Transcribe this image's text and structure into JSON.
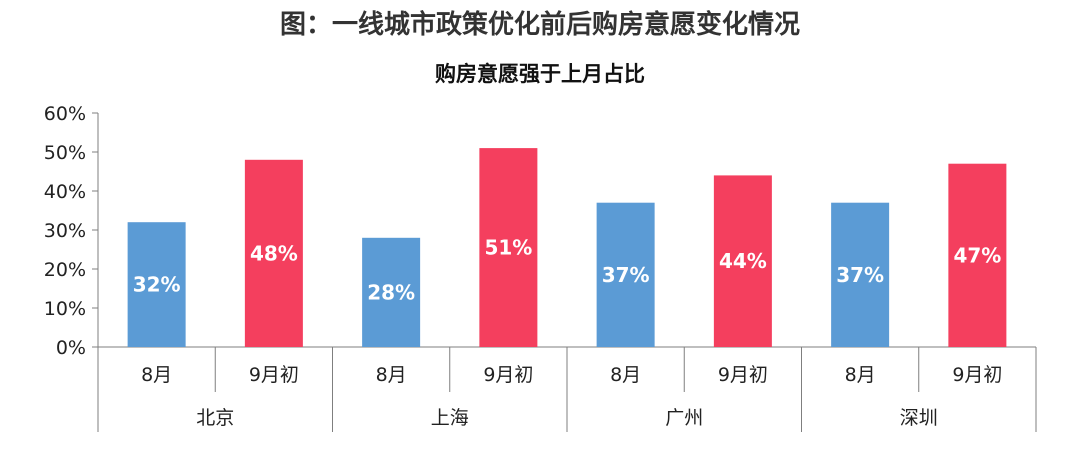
{
  "chart_data": {
    "type": "bar",
    "title": "图：一线城市政策优化前后购房意愿变化情况",
    "subtitle": "购房意愿强于上月占比",
    "ylim": [
      0,
      60
    ],
    "yticks": [
      "0%",
      "10%",
      "20%",
      "30%",
      "40%",
      "50%",
      "60%"
    ],
    "grid": false,
    "groups": [
      {
        "name": "北京",
        "bars": [
          {
            "category": "8月",
            "value": 32,
            "label": "32%",
            "color": "#5b9bd5"
          },
          {
            "category": "9月初",
            "value": 48,
            "label": "48%",
            "color": "#f43f5e"
          }
        ]
      },
      {
        "name": "上海",
        "bars": [
          {
            "category": "8月",
            "value": 28,
            "label": "28%",
            "color": "#5b9bd5"
          },
          {
            "category": "9月初",
            "value": 51,
            "label": "51%",
            "color": "#f43f5e"
          }
        ]
      },
      {
        "name": "广州",
        "bars": [
          {
            "category": "8月",
            "value": 37,
            "label": "37%",
            "color": "#5b9bd5"
          },
          {
            "category": "9月初",
            "value": 44,
            "label": "44%",
            "color": "#f43f5e"
          }
        ]
      },
      {
        "name": "深圳",
        "bars": [
          {
            "category": "8月",
            "value": 37,
            "label": "37%",
            "color": "#5b9bd5"
          },
          {
            "category": "9月初",
            "value": 47,
            "label": "47%",
            "color": "#f43f5e"
          }
        ]
      }
    ]
  }
}
